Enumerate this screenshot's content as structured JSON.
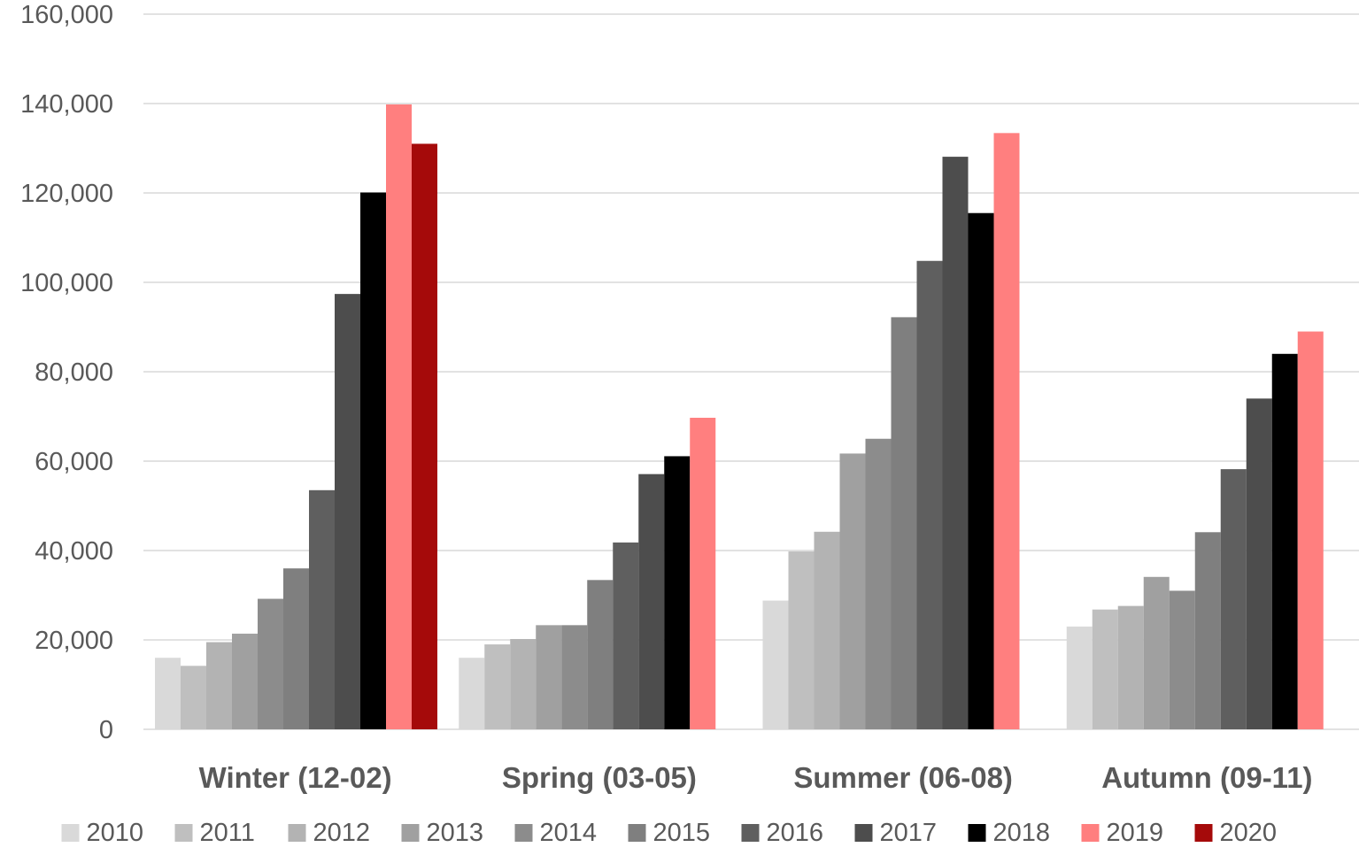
{
  "chart_data": {
    "type": "bar",
    "title": "",
    "xlabel": "",
    "ylabel": "",
    "categories": [
      "Winter (12-02)",
      "Spring (03-05)",
      "Summer (06-08)",
      "Autumn (09-11)"
    ],
    "ylim": [
      0,
      160000
    ],
    "yticks": [
      0,
      20000,
      40000,
      60000,
      80000,
      100000,
      120000,
      140000,
      160000
    ],
    "ytick_labels": [
      "0",
      "20,000",
      "40,000",
      "60,000",
      "80,000",
      "100,000",
      "120,000",
      "140,000",
      "160,000"
    ],
    "grid": true,
    "legend_position": "bottom",
    "series": [
      {
        "name": "2010",
        "color": "#d9d9d9",
        "values": [
          16000,
          16000,
          28800,
          23000
        ]
      },
      {
        "name": "2011",
        "color": "#bfbfbf",
        "values": [
          14200,
          19000,
          39800,
          26800
        ]
      },
      {
        "name": "2012",
        "color": "#b3b3b3",
        "values": [
          19500,
          20200,
          44200,
          27600
        ]
      },
      {
        "name": "2013",
        "color": "#a0a0a0",
        "values": [
          21400,
          23300,
          61700,
          34100
        ]
      },
      {
        "name": "2014",
        "color": "#8c8c8c",
        "values": [
          29200,
          23300,
          65000,
          31000
        ]
      },
      {
        "name": "2015",
        "color": "#7f7f7f",
        "values": [
          36000,
          33400,
          92200,
          44100
        ]
      },
      {
        "name": "2016",
        "color": "#5f5f5f",
        "values": [
          53500,
          41800,
          104800,
          58200
        ]
      },
      {
        "name": "2017",
        "color": "#4d4d4d",
        "values": [
          97400,
          57100,
          128100,
          74000
        ]
      },
      {
        "name": "2018",
        "color": "#000000",
        "values": [
          120100,
          61100,
          115500,
          84000
        ]
      },
      {
        "name": "2019",
        "color": "#ff7f7f",
        "values": [
          139800,
          69700,
          133400,
          89000
        ]
      },
      {
        "name": "2020",
        "color": "#a50a0a",
        "values": [
          131000,
          null,
          null,
          null
        ]
      }
    ]
  }
}
